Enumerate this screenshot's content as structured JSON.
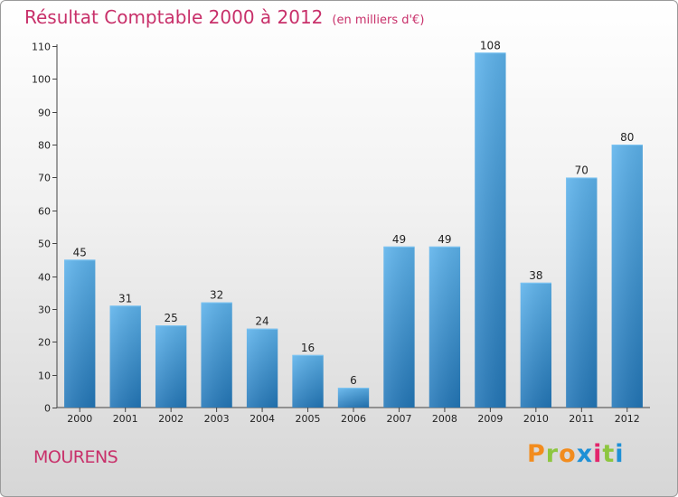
{
  "chart_data": {
    "type": "bar",
    "title": "Résultat Comptable 2000 à 2012",
    "subtitle": "(en milliers d'€)",
    "categories": [
      "2000",
      "2001",
      "2002",
      "2003",
      "2004",
      "2005",
      "2006",
      "2007",
      "2008",
      "2009",
      "2010",
      "2011",
      "2012"
    ],
    "values": [
      45,
      31,
      25,
      32,
      24,
      16,
      6,
      49,
      49,
      108,
      38,
      70,
      80
    ],
    "ylim": [
      0,
      110
    ],
    "yticks": [
      0,
      10,
      20,
      30,
      40,
      50,
      60,
      70,
      80,
      90,
      100,
      110
    ],
    "xlabel": "",
    "ylabel": "",
    "grid": false,
    "bar_color": "#3d97d8"
  },
  "footer": {
    "commune": "MOURENS",
    "logo": "Proxiti",
    "logo_colors": [
      "#f28c1e",
      "#8dc63f",
      "#f28c1e",
      "#1e90d6",
      "#e3256b",
      "#8dc63f",
      "#1e90d6"
    ]
  }
}
